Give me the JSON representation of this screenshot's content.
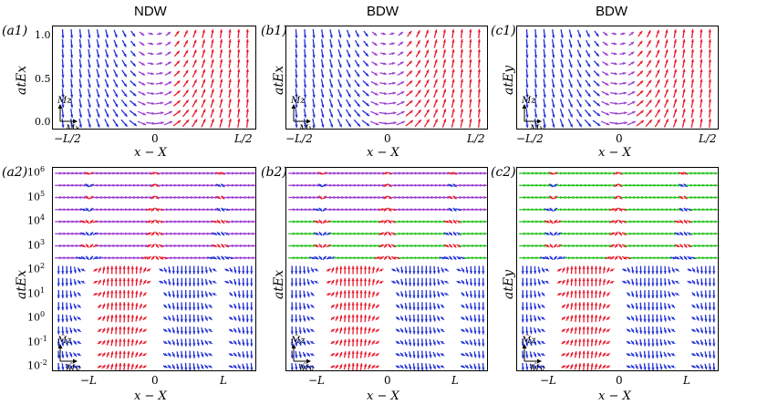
{
  "titles": [
    "NDW",
    "BDW",
    "BDW"
  ],
  "panel_labels": {
    "a1": "(a1)",
    "b1": "(b1)",
    "c1": "(c1)",
    "a2": "(a2)",
    "b2": "(b2)",
    "c2": "(c2)"
  },
  "top": {
    "ylabels": [
      "atEx",
      "atEx",
      "atEy"
    ],
    "xlabel": "x − X",
    "xticks": [
      "−L/2",
      "0",
      "L/2"
    ],
    "yticks_left": [
      "1.0",
      "0.5",
      "0.0"
    ],
    "corner_axes": [
      {
        "up": "M̂z",
        "right": "M̂x"
      },
      {
        "up": "M̂z",
        "right": "M̂y"
      },
      {
        "up": "M̂z",
        "right": "M̂y"
      }
    ]
  },
  "bottom": {
    "ylabels": [
      "atEx",
      "atEx",
      "atEy"
    ],
    "xlabel": "x − X",
    "xticks": [
      "−L",
      "0",
      "L"
    ],
    "yticks_left": [
      "10^6",
      "10^5",
      "10^4",
      "10^3",
      "10^2",
      "10^1",
      "10^0",
      "10^-1",
      "10^-2"
    ],
    "corner_axes": [
      {
        "up": "M̂z",
        "right": "M̂y"
      },
      {
        "up": "M̂z",
        "right": "M̂y"
      },
      {
        "up": "M̂z",
        "right": "M̂y"
      }
    ]
  },
  "colors": {
    "up": "#e8192c",
    "down": "#1f2fd6",
    "inplane": "#9b3fd1",
    "green": "#27c41f",
    "white": "#ffffff"
  }
}
